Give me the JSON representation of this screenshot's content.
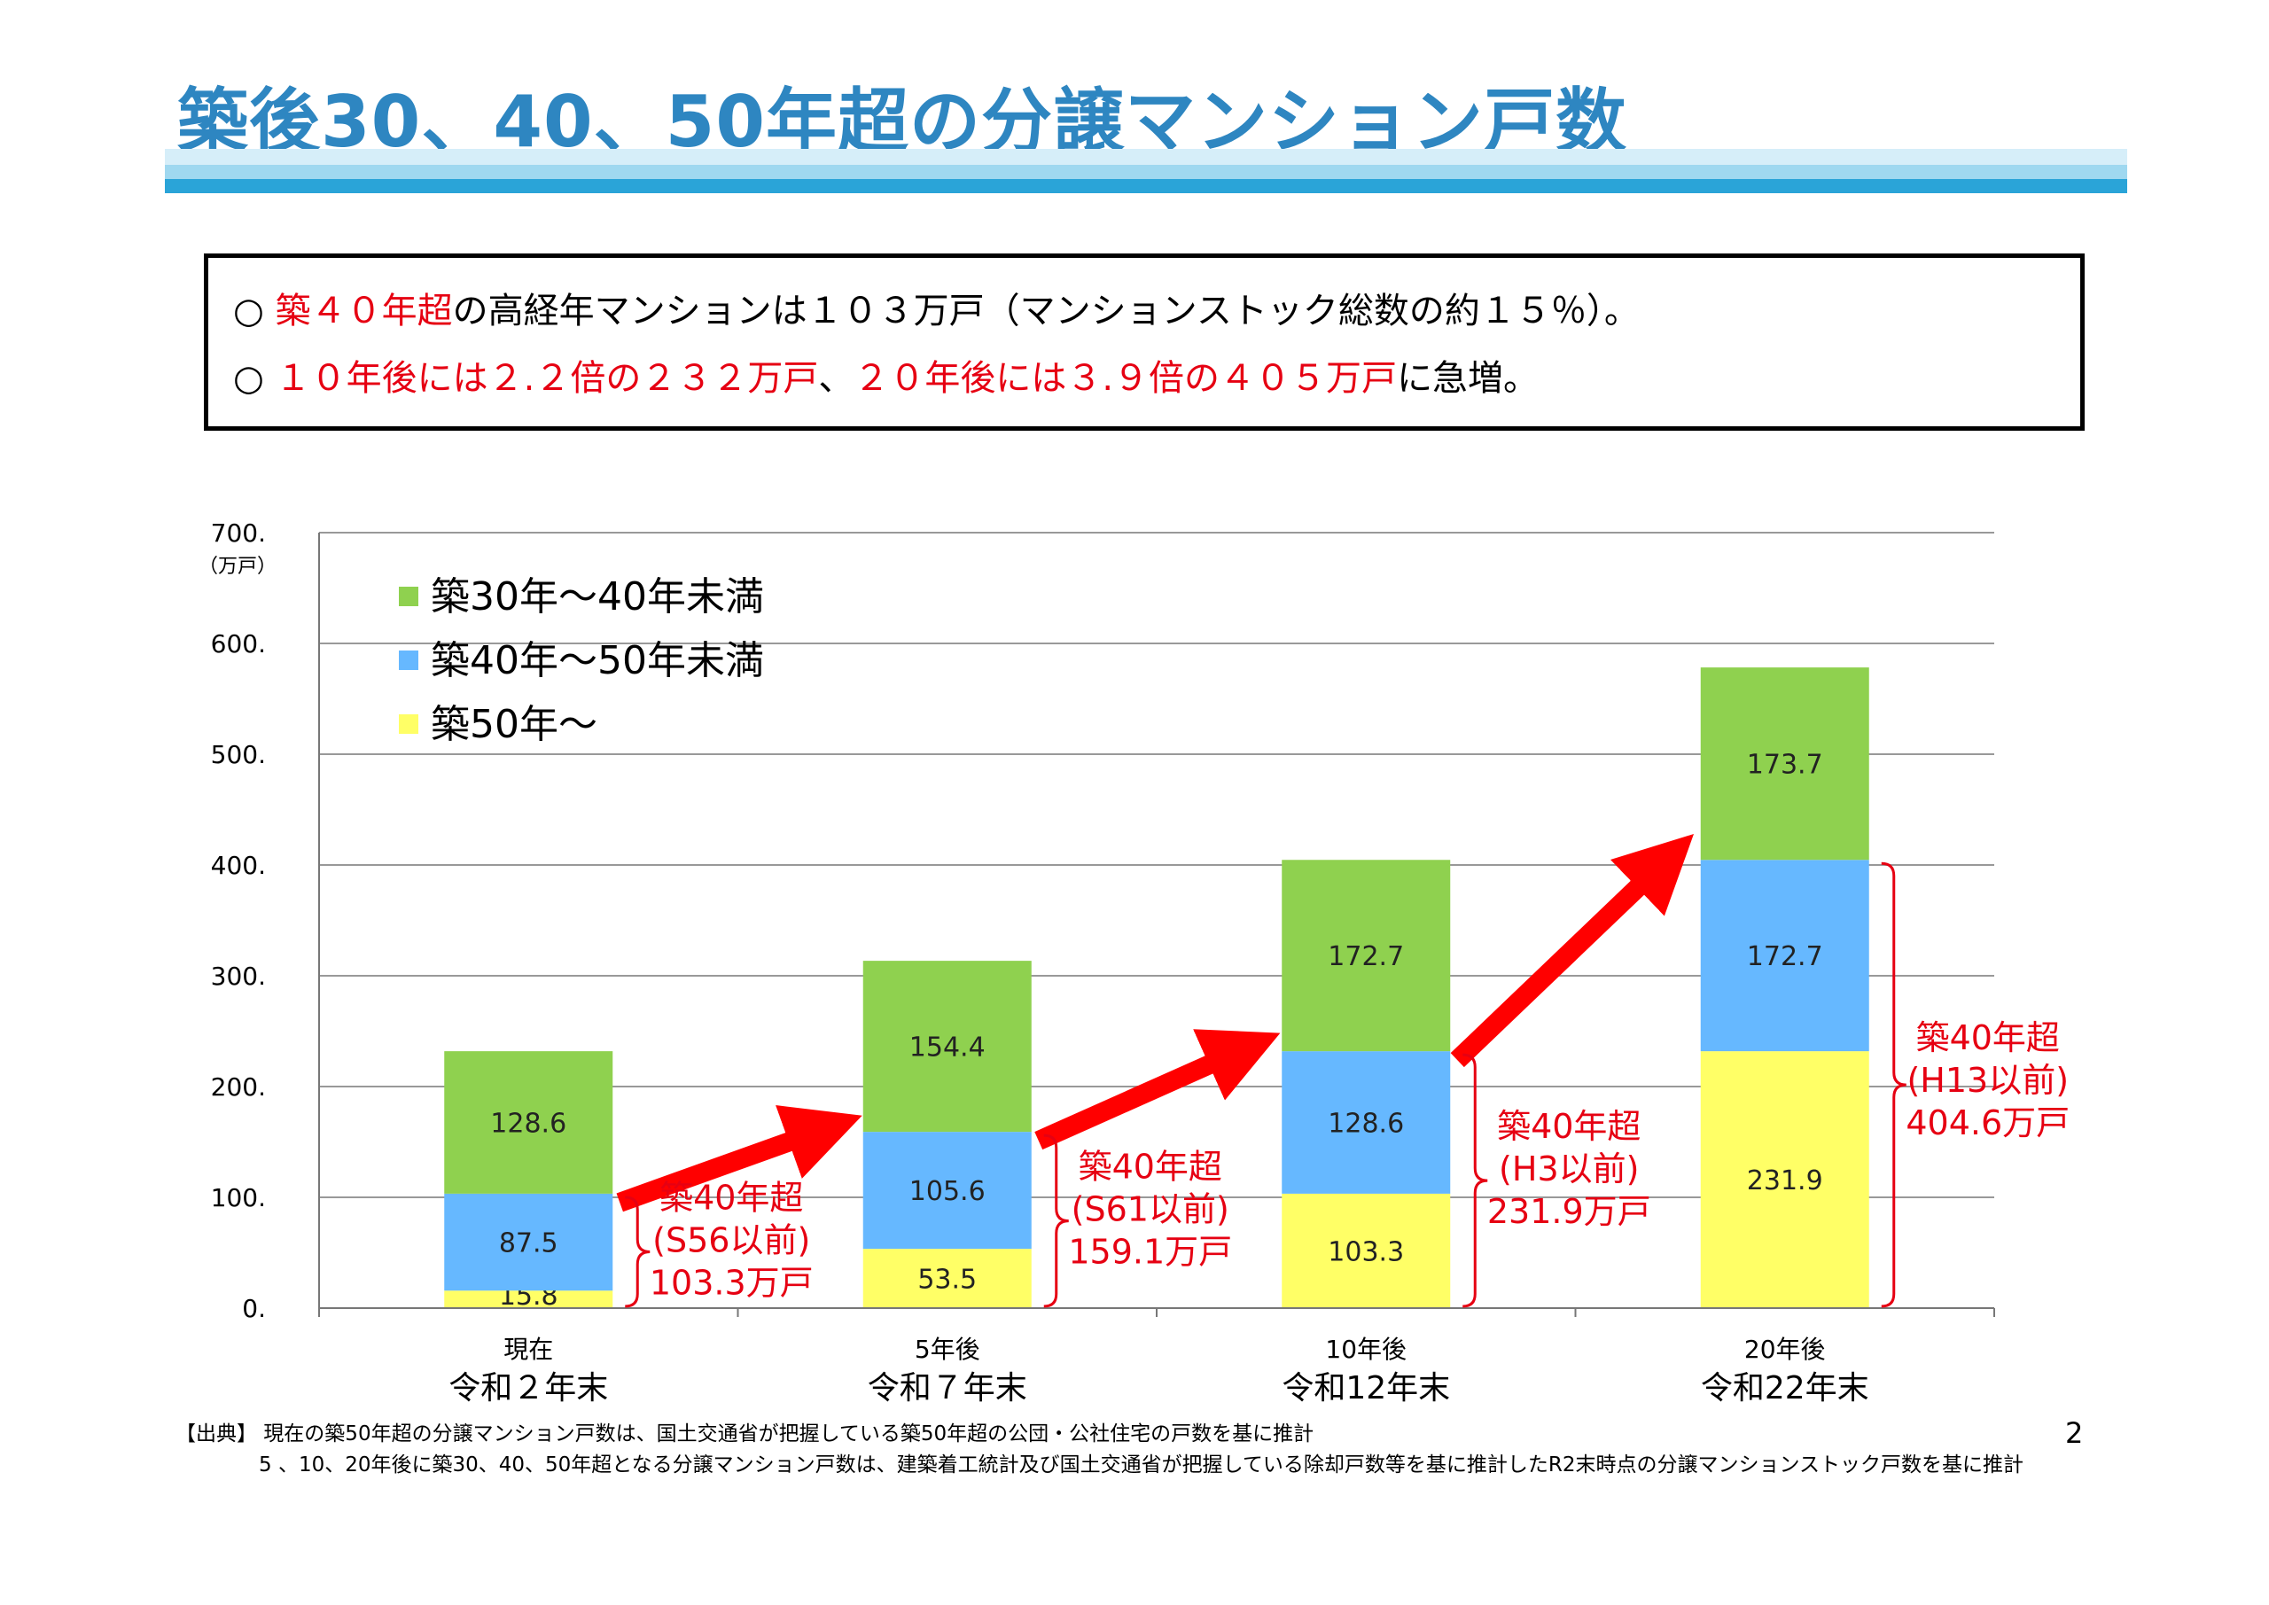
{
  "title": "築後30、40、50年超の分譲マンション戸数",
  "summary": {
    "line1": [
      {
        "text": "○ ",
        "color": "black"
      },
      {
        "text": "築４０年超",
        "color": "red"
      },
      {
        "text": "の高経年マンションは１０３万戸（マンションストック総数の約１５％）。",
        "color": "black"
      }
    ],
    "line2": [
      {
        "text": "○ ",
        "color": "black"
      },
      {
        "text": "１０年後には２.２倍の２３２万戸",
        "color": "red"
      },
      {
        "text": "、",
        "color": "black"
      },
      {
        "text": "２０年後には３.９倍の４０５万戸",
        "color": "red"
      },
      {
        "text": "に急増。",
        "color": "black"
      }
    ]
  },
  "chart_data": {
    "type": "bar",
    "stacked": true,
    "categories": [
      "現在",
      "5年後",
      "10年後",
      "20年後"
    ],
    "category_sublabels": [
      "令和２年末",
      "令和７年末",
      "令和12年末",
      "令和22年末"
    ],
    "series": [
      {
        "name": "築50年～",
        "color": "#ffff66",
        "values": [
          15.8,
          53.5,
          103.3,
          231.9
        ]
      },
      {
        "name": "築40年～50年未満",
        "color": "#66b8ff",
        "values": [
          87.5,
          105.6,
          128.6,
          172.7
        ]
      },
      {
        "name": "築30年～40年未満",
        "color": "#8fd14f",
        "values": [
          128.6,
          154.4,
          172.7,
          173.7
        ]
      }
    ],
    "legend_order": [
      "築30年～40年未満",
      "築40年～50年未満",
      "築50年～"
    ],
    "legend_position": "top-left",
    "ylim": [
      0,
      700
    ],
    "yticks": [
      "0.",
      "100.",
      "200.",
      "300.",
      "400.",
      "500.",
      "600.",
      "700."
    ],
    "yunit": "（万戸）",
    "grid": true,
    "annotations": [
      {
        "lines": [
          "築40年超",
          "(S56以前)",
          "103.3万戸"
        ]
      },
      {
        "lines": [
          "築40年超",
          "(S61以前)",
          "159.1万戸"
        ]
      },
      {
        "lines": [
          "築40年超",
          "(H3以前)",
          "231.9万戸"
        ]
      },
      {
        "lines": [
          "築40年超",
          "(H13以前)",
          "404.6万戸"
        ]
      }
    ]
  },
  "source": {
    "line1": "【出典】 現在の築50年超の分譲マンション戸数は、国土交通省が把握している築50年超の公団・公社住宅の戸数を基に推計",
    "line2": "5 、10、20年後に築30、40、50年超となる分譲マンション戸数は、建築着工統計及び国土交通省が把握している除却戸数等を基に推計したR2末時点の分譲マンションストック戸数を基に推計"
  },
  "page_number": "2"
}
